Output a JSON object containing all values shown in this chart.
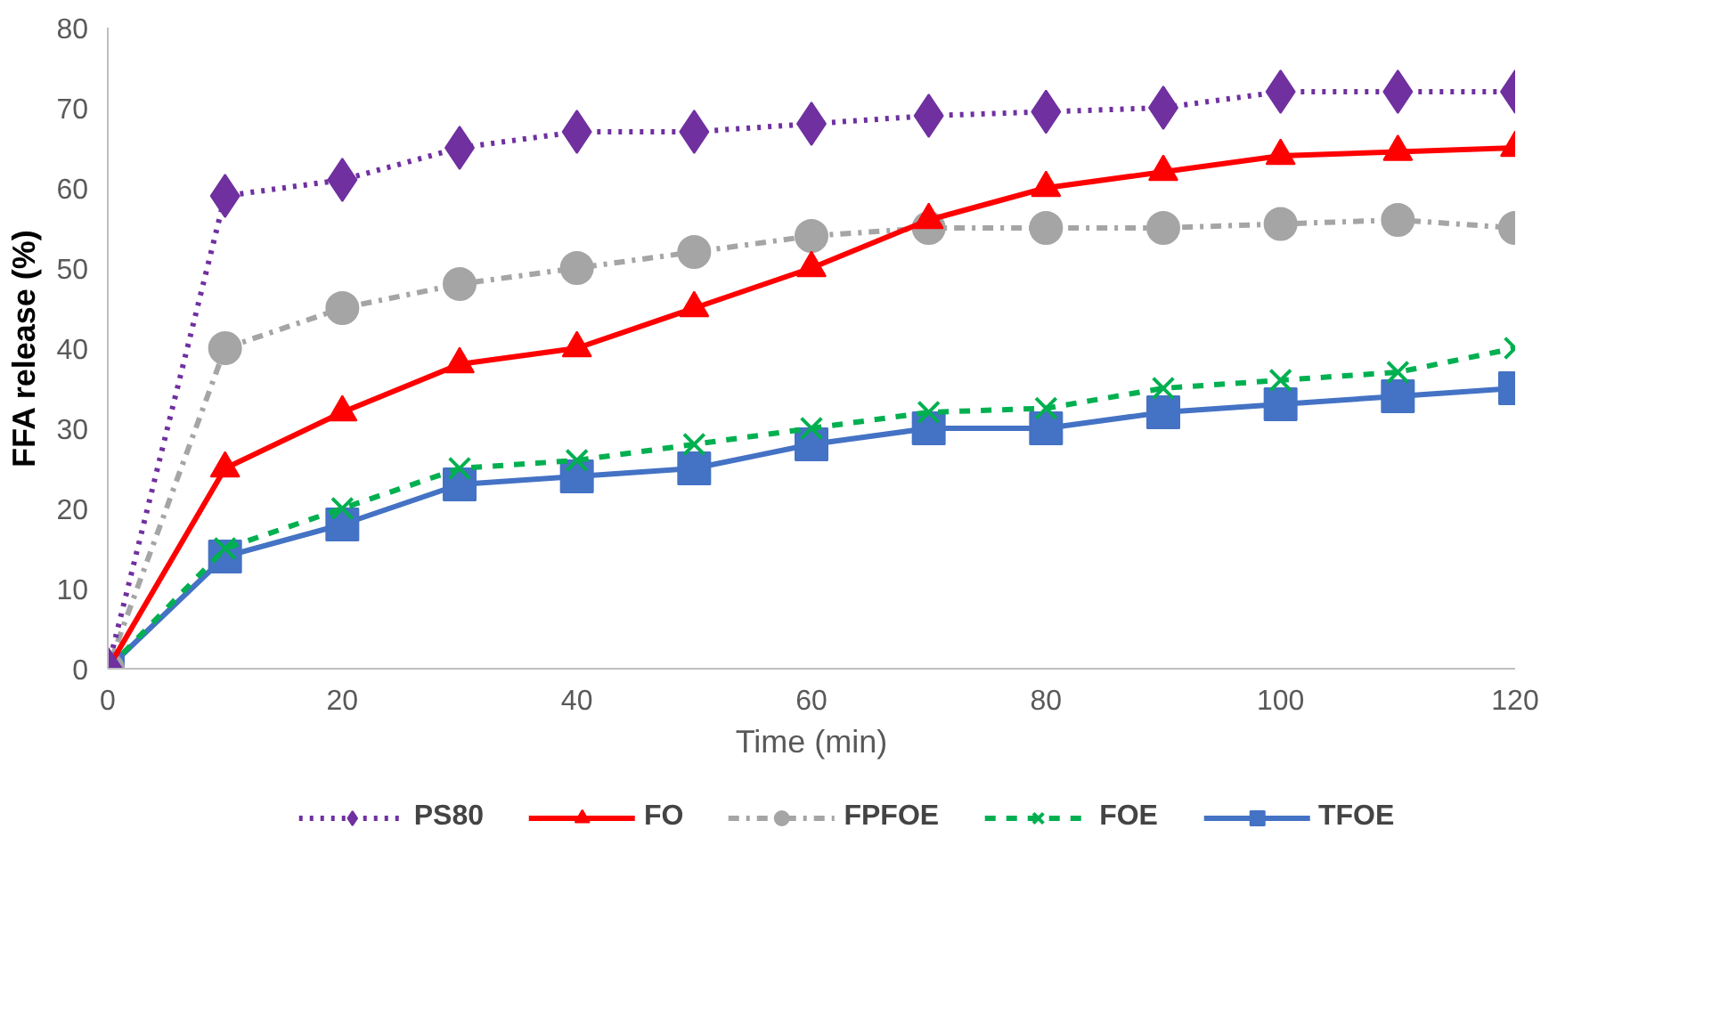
{
  "chart_data": {
    "type": "line",
    "xlabel": "Time (min)",
    "ylabel": "FFA release (%)",
    "x": [
      0,
      10,
      20,
      30,
      40,
      50,
      60,
      70,
      80,
      90,
      100,
      110,
      120
    ],
    "xlim": [
      0,
      120
    ],
    "xticks": [
      0,
      20,
      40,
      60,
      80,
      100,
      120
    ],
    "ylim": [
      0,
      80
    ],
    "yticks": [
      0,
      10,
      20,
      30,
      40,
      50,
      60,
      70,
      80
    ],
    "grid": false,
    "legend": "bottom",
    "series": [
      {
        "name": "PS80",
        "color": "#7030a0",
        "marker": "diamond",
        "line_style": "dotted",
        "values": [
          0,
          59,
          61,
          65,
          67,
          67,
          68,
          69,
          69.5,
          70,
          72,
          72,
          72
        ]
      },
      {
        "name": "FO",
        "color": "#ff0000",
        "marker": "triangle",
        "line_style": "solid",
        "values": [
          0,
          25,
          32,
          38,
          40,
          45,
          50,
          56,
          60,
          62,
          64,
          64.5,
          65
        ]
      },
      {
        "name": "FPFOE",
        "color": "#a5a5a5",
        "marker": "circle",
        "line_style": "dashdot",
        "values": [
          0,
          40,
          45,
          48,
          50,
          52,
          54,
          55,
          55,
          55,
          55.5,
          56,
          55
        ]
      },
      {
        "name": "FOE",
        "color": "#00b050",
        "marker": "cross",
        "line_style": "dashed",
        "values": [
          0,
          15,
          20,
          25,
          26,
          28,
          30,
          32,
          32.5,
          35,
          36,
          37,
          40
        ]
      },
      {
        "name": "TFOE",
        "color": "#4472c4",
        "marker": "square",
        "line_style": "solid",
        "values": [
          0,
          14,
          18,
          23,
          24,
          25,
          28,
          30,
          30,
          32,
          33,
          34,
          35
        ]
      }
    ]
  }
}
